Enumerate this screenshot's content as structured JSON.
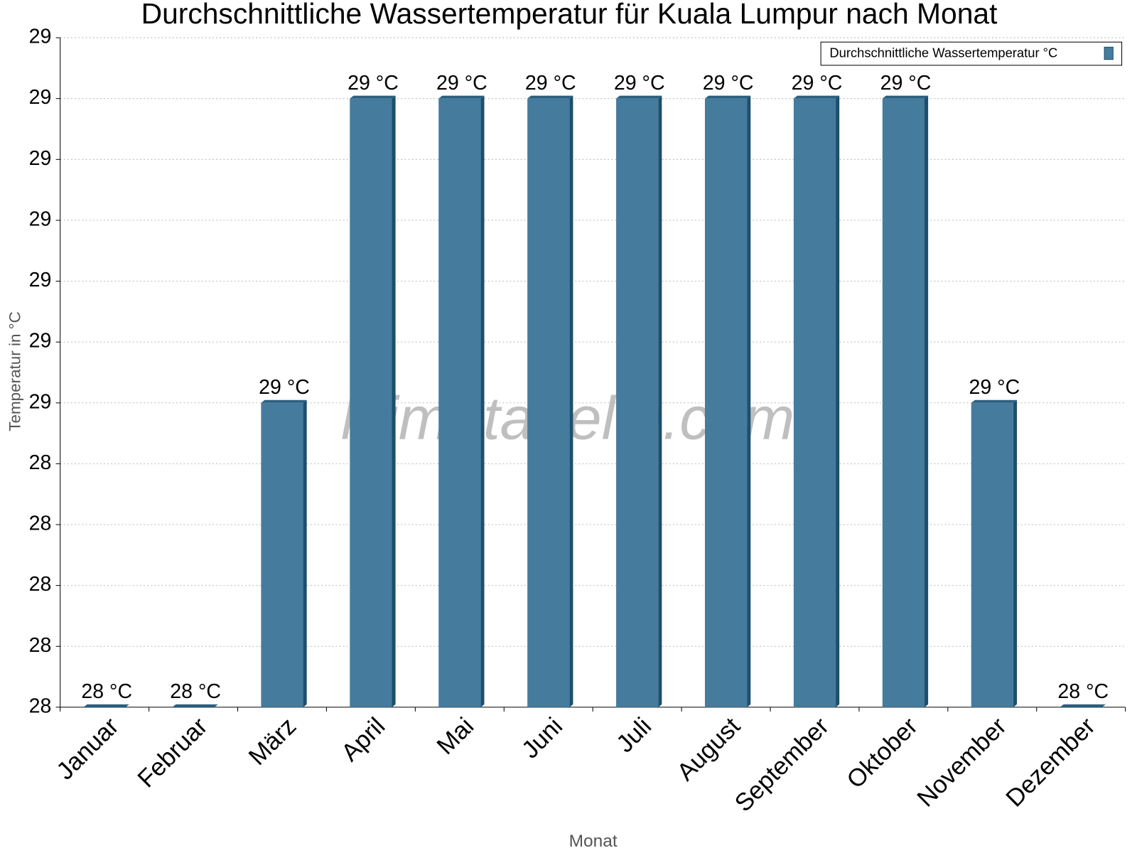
{
  "chart_data": {
    "type": "bar",
    "title": "Durchschnittliche Wassertemperatur für Kuala Lumpur nach Monat",
    "watermark": "klimatabelle.com",
    "x_label": "Monat",
    "y_label": "Temperatur in °C",
    "categories": [
      "Januar",
      "Februar",
      "März",
      "April",
      "Mai",
      "Juni",
      "Juli",
      "August",
      "September",
      "Oktober",
      "November",
      "Dezember"
    ],
    "series": [
      {
        "name": "Durchschnittliche Wassertemperatur °C",
        "color": "#457b9d",
        "values": [
          28,
          28,
          28.5,
          29,
          29,
          29,
          29,
          29,
          29,
          29,
          28.5,
          28
        ],
        "value_labels": [
          "28 °C",
          "28 °C",
          "29 °C",
          "29 °C",
          "29 °C",
          "29 °C",
          "29 °C",
          "29 °C",
          "29 °C",
          "29 °C",
          "29 °C",
          "28 °C"
        ]
      }
    ],
    "ylim": [
      28,
      29.1
    ],
    "yticks": [
      {
        "value": 28,
        "label": "28"
      },
      {
        "value": 28.1,
        "label": "28"
      },
      {
        "value": 28.2,
        "label": "28"
      },
      {
        "value": 28.3,
        "label": "28"
      },
      {
        "value": 28.4,
        "label": "28"
      },
      {
        "value": 28.5,
        "label": "29"
      },
      {
        "value": 28.6,
        "label": "29"
      },
      {
        "value": 28.7,
        "label": "29"
      },
      {
        "value": 28.8,
        "label": "29"
      },
      {
        "value": 28.9,
        "label": "29"
      },
      {
        "value": 29,
        "label": "29"
      },
      {
        "value": 29.1,
        "label": "29"
      }
    ],
    "grid": true,
    "legend": "top-right"
  }
}
